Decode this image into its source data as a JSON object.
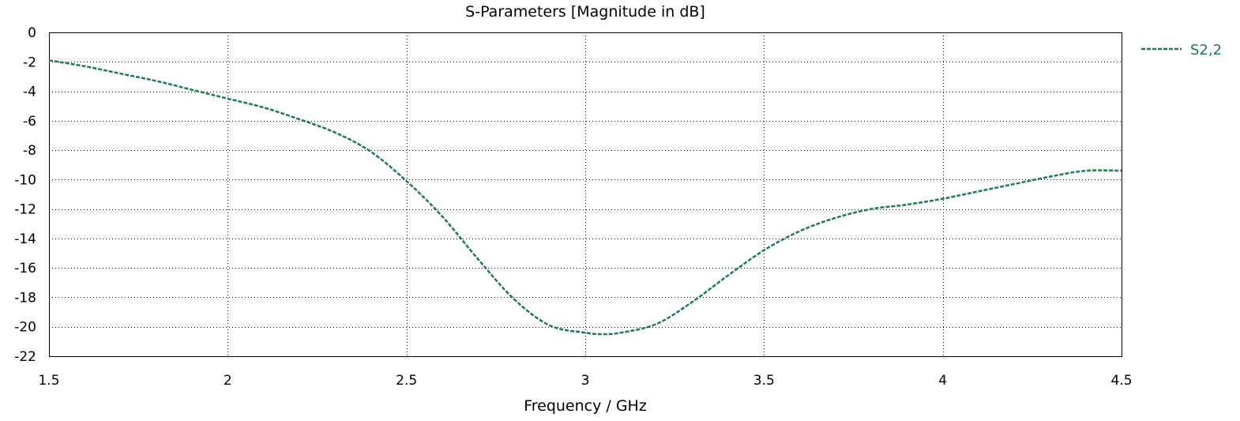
{
  "chart_data": {
    "type": "line",
    "title": "S-Parameters [Magnitude in dB]",
    "xlabel": "Frequency / GHz",
    "ylabel": "",
    "xlim": [
      1.5,
      4.5
    ],
    "ylim": [
      -22,
      0
    ],
    "xticks": [
      1.5,
      2,
      2.5,
      3,
      3.5,
      4,
      4.5
    ],
    "xtick_labels": [
      "1.5",
      "2",
      "2.5",
      "3",
      "3.5",
      "4",
      "4.5"
    ],
    "yticks": [
      0,
      -2,
      -4,
      -6,
      -8,
      -10,
      -12,
      -14,
      -16,
      -18,
      -20,
      -22
    ],
    "ytick_labels": [
      "0",
      "-2",
      "-4",
      "-6",
      "-8",
      "-10",
      "-12",
      "-14",
      "-16",
      "-18",
      "-20",
      "-22"
    ],
    "grid": true,
    "legend_position": "outside-right-top",
    "series": [
      {
        "name": "S2,2",
        "color": "#1a7f4b",
        "line_style": "dashed",
        "x": [
          1.5,
          1.6,
          1.7,
          1.8,
          1.9,
          2.0,
          2.1,
          2.2,
          2.3,
          2.4,
          2.5,
          2.6,
          2.7,
          2.8,
          2.9,
          3.0,
          3.05,
          3.1,
          3.2,
          3.3,
          3.4,
          3.5,
          3.6,
          3.7,
          3.8,
          3.9,
          4.0,
          4.1,
          4.2,
          4.3,
          4.4,
          4.5
        ],
        "y": [
          -1.9,
          -2.3,
          -2.8,
          -3.3,
          -3.9,
          -4.5,
          -5.1,
          -5.9,
          -6.8,
          -8.1,
          -10.1,
          -12.5,
          -15.4,
          -18.1,
          -19.9,
          -20.4,
          -20.5,
          -20.4,
          -19.8,
          -18.3,
          -16.5,
          -14.8,
          -13.5,
          -12.6,
          -12.0,
          -11.7,
          -11.3,
          -10.8,
          -10.3,
          -9.8,
          -9.4,
          -9.4
        ]
      }
    ]
  }
}
